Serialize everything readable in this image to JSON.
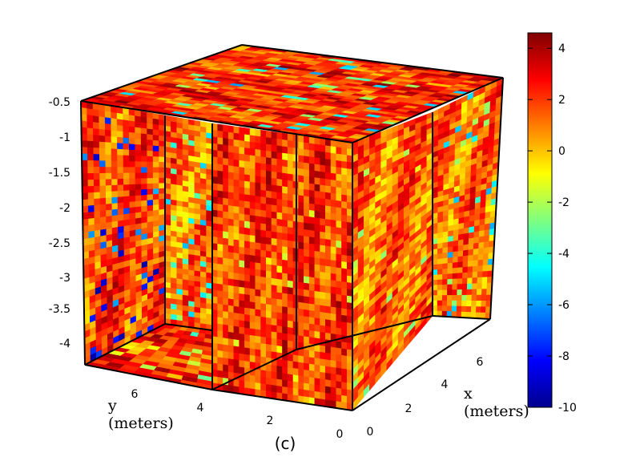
{
  "chart_data": {
    "type": "heatmap",
    "subtype": "3d-slice-volume",
    "caption": "(c)",
    "z_axis": {
      "ticks": [
        "-0.5",
        "-1",
        "-1.5",
        "-2",
        "-2.5",
        "-3",
        "-3.5",
        "-4"
      ],
      "range": [
        -4.3,
        -0.5
      ]
    },
    "y_axis": {
      "label": "y",
      "unit": "(meters)",
      "ticks": [
        "6",
        "4",
        "2",
        "0"
      ],
      "range": [
        0,
        7.6
      ]
    },
    "x_axis": {
      "label": "x",
      "unit": "(meters)",
      "ticks": [
        "0",
        "2",
        "4",
        "6"
      ],
      "range": [
        0,
        7.6
      ]
    },
    "colorbar": {
      "ticks": [
        "4",
        "2",
        "0",
        "-2",
        "-4",
        "-6",
        "-8",
        "-10"
      ],
      "range": [
        -10,
        4.6
      ],
      "colormap": "jet"
    },
    "slices": [
      {
        "name": "top",
        "base": 2.2,
        "min": -6
      },
      {
        "name": "left",
        "base": 1.8,
        "min": -9.5
      },
      {
        "name": "inner-left",
        "base": 1.2,
        "min": -6
      },
      {
        "name": "back",
        "base": 2.0,
        "min": -2
      },
      {
        "name": "front",
        "base": 1.4,
        "min": -3
      },
      {
        "name": "right",
        "base": 1.3,
        "min": -6
      },
      {
        "name": "floor",
        "base": 2.1,
        "min": -4
      }
    ]
  }
}
